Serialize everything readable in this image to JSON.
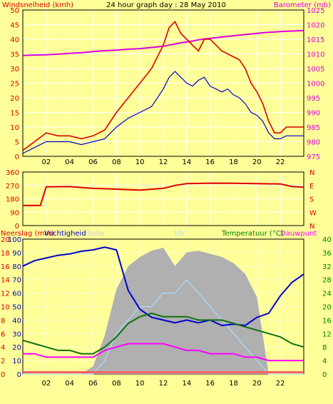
{
  "colors": {
    "background": "#ffff99",
    "plot_bg": "#ffff99",
    "grid": "#ffffff",
    "wind_gust": "#dd0000",
    "wind_speed": "#0000cc",
    "barometer": "#dd00dd",
    "direction": "#dd0000",
    "humidity": "#0000cc",
    "temperature": "#107010",
    "dewpoint": "#ff00ff",
    "solar": "#b0b0b0",
    "uv": "#aaddff",
    "rain": "#ff6060",
    "axis_green": "#008000"
  },
  "chart_data": [
    {
      "type": "line",
      "title": "24 hour graph day : 28 May 2010",
      "left_label": "Windsnelheid (kmh)",
      "right_label": "Barometer (mb)",
      "x_ticks": [
        "02",
        "04",
        "06",
        "08",
        "10",
        "12",
        "14",
        "16",
        "18",
        "20",
        "22",
        ""
      ],
      "ylim_left": [
        0,
        50
      ],
      "y_ticks_left": [
        "0",
        "5",
        "10",
        "15",
        "20",
        "25",
        "30",
        "35",
        "40",
        "45",
        "50"
      ],
      "ylim_right": [
        975,
        1025
      ],
      "y_ticks_right": [
        "975",
        "980",
        "985",
        "990",
        "995",
        "1000",
        "1005",
        "1010",
        "1015",
        "1020",
        "1025"
      ],
      "x_hours": [
        0,
        1,
        2,
        3,
        4,
        5,
        6,
        7,
        8,
        9,
        10,
        11,
        12,
        12.5,
        13,
        13.5,
        14,
        14.5,
        15,
        15.5,
        16,
        16.5,
        17,
        17.5,
        18,
        18.5,
        19,
        19.5,
        20,
        20.5,
        21,
        21.5,
        22,
        22.5,
        23,
        24
      ],
      "series": [
        {
          "key": "gust",
          "values": [
            2,
            5,
            8,
            7,
            7,
            6,
            7,
            9,
            15,
            20,
            25,
            30,
            38,
            44,
            46,
            42,
            40,
            38,
            36,
            40,
            40,
            38,
            36,
            35,
            34,
            33,
            30,
            25,
            22,
            18,
            12,
            8,
            8,
            10,
            10,
            10
          ]
        },
        {
          "key": "speed",
          "values": [
            1,
            3,
            5,
            5,
            5,
            4,
            5,
            6,
            10,
            13,
            15,
            17,
            23,
            27,
            29,
            27,
            25,
            24,
            26,
            27,
            24,
            23,
            22,
            23,
            21,
            20,
            18,
            15,
            14,
            12,
            8,
            6,
            6,
            7,
            7,
            7
          ]
        },
        {
          "key": "barometer",
          "values": [
            1009.5,
            1009.6,
            1009.7,
            1009.9,
            1010.2,
            1010.4,
            1010.8,
            1011.1,
            1011.3,
            1011.6,
            1011.8,
            1012.2,
            1012.6,
            1013.0,
            1013.4,
            1013.8,
            1014.1,
            1014.4,
            1014.8,
            1015.1,
            1015.3,
            1015.5,
            1015.8,
            1016.0,
            1016.2,
            1016.4,
            1016.6,
            1016.8,
            1017.0,
            1017.2,
            1017.4,
            1017.5,
            1017.6,
            1017.7,
            1017.8,
            1018.0
          ]
        }
      ]
    },
    {
      "type": "line",
      "y_ticks_left": [
        "0",
        "90",
        "180",
        "270",
        "360"
      ],
      "ylim_left": [
        0,
        360
      ],
      "compass": [
        "N",
        "W",
        "S",
        "E",
        "N"
      ],
      "x_ticks": [
        "02",
        "04",
        "06",
        "08",
        "10",
        "12",
        "14",
        "16",
        "18",
        "20",
        "22",
        ""
      ],
      "x_hours": [
        0,
        1,
        1.5,
        2,
        4,
        6,
        8,
        10,
        12,
        13,
        14,
        16,
        18,
        20,
        22,
        23,
        24
      ],
      "series": [
        {
          "key": "direction",
          "values": [
            135,
            135,
            135,
            260,
            262,
            250,
            245,
            238,
            250,
            270,
            282,
            285,
            284,
            282,
            280,
            262,
            258
          ]
        }
      ]
    },
    {
      "type": "line",
      "rain_label": "Neerslag (mm)",
      "humidity_label": "Vochtigheid",
      "solar_label": "Solar",
      "uv_label": "UV",
      "temp_label": "Temperatuur (°C)",
      "dew_label": "Dauwpunt",
      "x_ticks": [
        "02",
        "04",
        "06",
        "08",
        "10",
        "12",
        "14",
        "16",
        "18",
        "20",
        "22",
        ""
      ],
      "y_ticks_rain": [
        "0",
        "2",
        "4",
        "6",
        "8",
        "10",
        "12",
        "14",
        "16",
        "18",
        "20"
      ],
      "y_ticks_humidity": [
        "0",
        "10",
        "20",
        "30",
        "40",
        "50",
        "60",
        "70",
        "80",
        "90",
        "100"
      ],
      "ylim_temp": [
        0,
        40
      ],
      "y_ticks_temp": [
        "0",
        "4",
        "8",
        "12",
        "16",
        "20",
        "24",
        "28",
        "32",
        "36",
        "40"
      ],
      "x_hours": [
        0,
        1,
        2,
        3,
        4,
        5,
        6,
        7,
        8,
        9,
        10,
        11,
        12,
        13,
        14,
        15,
        16,
        17,
        18,
        19,
        20,
        21,
        22,
        23,
        24
      ],
      "series": [
        {
          "key": "humidity",
          "values": [
            80,
            84,
            86,
            88,
            89,
            91,
            92,
            94,
            92,
            62,
            48,
            42,
            40,
            38,
            40,
            38,
            40,
            36,
            37,
            36,
            42,
            45,
            58,
            68,
            74
          ]
        },
        {
          "key": "temperature",
          "values": [
            10,
            9,
            8,
            7,
            7,
            6,
            6,
            8,
            11,
            15,
            17,
            18,
            17,
            17,
            17,
            16,
            16,
            16,
            15,
            14,
            13,
            12,
            11,
            9,
            8
          ]
        },
        {
          "key": "dewpoint",
          "values": [
            6,
            6,
            5,
            5,
            5,
            5,
            5,
            7,
            8,
            9,
            9,
            9,
            9,
            8,
            7,
            7,
            6,
            6,
            6,
            5,
            5,
            4,
            4,
            4,
            4
          ]
        },
        {
          "key": "solar",
          "values": [
            0,
            0,
            0,
            0,
            0,
            0,
            50,
            250,
            550,
            700,
            760,
            800,
            820,
            700,
            790,
            800,
            780,
            760,
            720,
            650,
            500,
            0,
            0,
            0,
            0
          ]
        },
        {
          "key": "uv",
          "values": [
            0,
            0,
            0,
            0,
            0,
            0,
            0,
            1,
            3,
            4,
            5,
            5,
            6,
            6,
            7,
            6,
            5,
            4,
            3,
            2,
            1,
            0,
            0,
            0,
            0
          ]
        }
      ]
    }
  ]
}
